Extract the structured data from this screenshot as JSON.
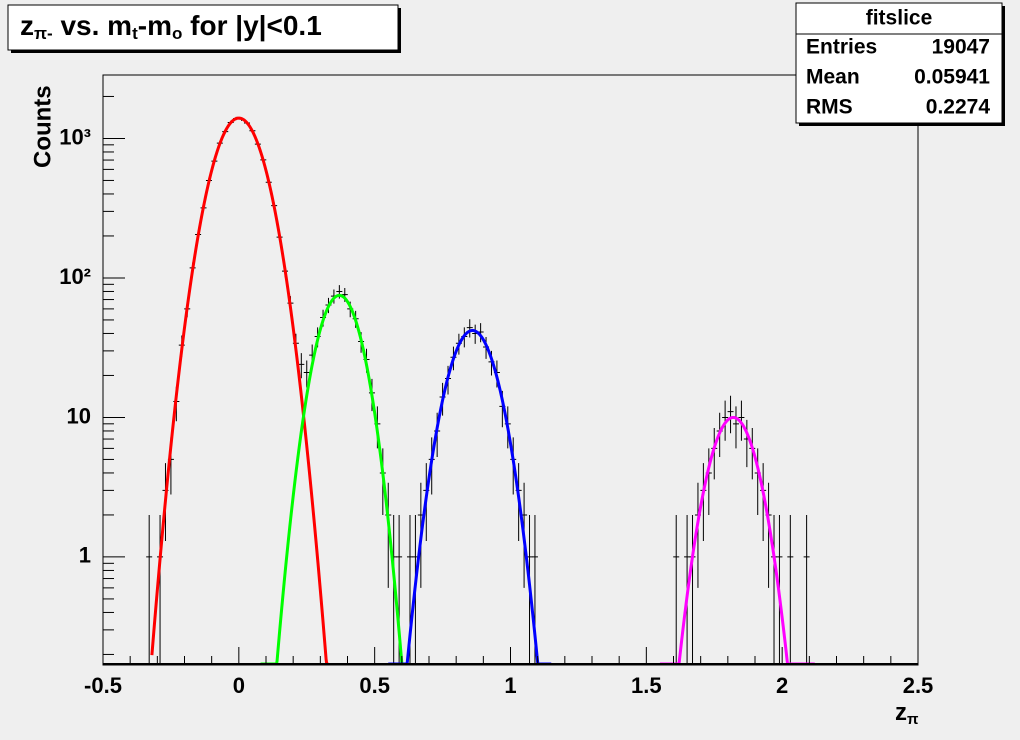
{
  "chart_data": {
    "type": "errorbar",
    "title": [
      "z",
      "π-",
      " vs. m",
      "t",
      "-m",
      "o",
      " for |y|<0.1"
    ],
    "xlabel": [
      "z",
      "π"
    ],
    "ylabel": "Counts",
    "color": "#000000",
    "x": [
      -0.33,
      -0.29,
      -0.27,
      -0.25,
      -0.23,
      -0.21,
      -0.19,
      -0.17,
      -0.15,
      -0.13,
      -0.11,
      -0.09,
      -0.07,
      -0.05,
      -0.03,
      -0.01,
      0.01,
      0.03,
      0.05,
      0.07,
      0.09,
      0.11,
      0.13,
      0.15,
      0.17,
      0.19,
      0.21,
      0.23,
      0.25,
      0.27,
      0.29,
      0.31,
      0.33,
      0.35,
      0.37,
      0.39,
      0.41,
      0.43,
      0.45,
      0.47,
      0.49,
      0.51,
      0.53,
      0.55,
      0.57,
      0.59,
      0.63,
      0.65,
      0.67,
      0.69,
      0.71,
      0.73,
      0.75,
      0.77,
      0.79,
      0.81,
      0.83,
      0.85,
      0.87,
      0.89,
      0.91,
      0.93,
      0.95,
      0.97,
      0.99,
      1.01,
      1.03,
      1.05,
      1.07,
      1.09,
      1.61,
      1.65,
      1.67,
      1.69,
      1.71,
      1.73,
      1.75,
      1.77,
      1.79,
      1.81,
      1.83,
      1.85,
      1.87,
      1.89,
      1.91,
      1.93,
      1.95,
      1.97,
      1.99,
      2.03,
      2.09
    ],
    "values": [
      1,
      1,
      3,
      5,
      13,
      33,
      60,
      118,
      205,
      318,
      500,
      688,
      925,
      1120,
      1302,
      1390,
      1375,
      1290,
      1135,
      910,
      702,
      485,
      330,
      196,
      112,
      66,
      34,
      24,
      21,
      28,
      38,
      52,
      64,
      74,
      80,
      76,
      60,
      51,
      35,
      26,
      15,
      9,
      4,
      2,
      1,
      1,
      1,
      1,
      2,
      3,
      5,
      8,
      14,
      19,
      27,
      34,
      38,
      44,
      40,
      41,
      32,
      25,
      21,
      12,
      9,
      5,
      3,
      2,
      1,
      1,
      1,
      1,
      1,
      2,
      3,
      4,
      6,
      8,
      10,
      11,
      9,
      10,
      7,
      6,
      4,
      3,
      2,
      1,
      1,
      1,
      1
    ],
    "errors": [
      1,
      1,
      1.7,
      2.2,
      3.6,
      5.7,
      7.7,
      10.9,
      14.3,
      17.8,
      22.4,
      26.2,
      30.4,
      33.5,
      36.1,
      37.3,
      37.1,
      35.9,
      33.7,
      30.2,
      26.5,
      22,
      18.2,
      14,
      10.6,
      8.1,
      5.8,
      4.9,
      4.6,
      5.3,
      6.2,
      7.2,
      8,
      8.6,
      8.9,
      8.7,
      7.7,
      7.1,
      5.9,
      5.1,
      3.9,
      3,
      2,
      1.4,
      1,
      1,
      1,
      1,
      1.4,
      1.7,
      2.2,
      2.8,
      3.7,
      4.4,
      5.2,
      5.8,
      6.2,
      6.6,
      6.3,
      6.4,
      5.7,
      5,
      4.6,
      3.5,
      3,
      2.2,
      1.7,
      1.4,
      1,
      1,
      1,
      1,
      1,
      1.4,
      1.7,
      2,
      2.4,
      2.8,
      3.2,
      3.3,
      3,
      3.2,
      2.6,
      2.4,
      2,
      1.7,
      1.4,
      1,
      1,
      1,
      1
    ],
    "xlim": [
      -0.5,
      2.5
    ],
    "ylim": [
      0.168,
      2850
    ],
    "log_y": true,
    "xticks": [
      -0.5,
      0,
      0.5,
      1,
      1.5,
      2,
      2.5
    ],
    "xminorticks": [
      -0.4,
      -0.3,
      -0.2,
      -0.1,
      0.1,
      0.2,
      0.3,
      0.4,
      0.6,
      0.7,
      0.8,
      0.9,
      1.1,
      1.2,
      1.3,
      1.4,
      1.6,
      1.7,
      1.8,
      1.9,
      2.1,
      2.2,
      2.3,
      2.4
    ],
    "yticks": [
      1,
      10,
      {
        "value": 100,
        "label": "10²"
      },
      {
        "value": 1000,
        "label": "10³"
      }
    ],
    "yminorticks": [
      0.2,
      0.3,
      0.4,
      0.5,
      0.6,
      0.7,
      0.8,
      0.9,
      2,
      3,
      4,
      5,
      6,
      7,
      8,
      9,
      20,
      30,
      40,
      50,
      60,
      70,
      80,
      90,
      200,
      300,
      400,
      500,
      600,
      700,
      800,
      900,
      2000
    ],
    "fits": [
      {
        "color": "#ff0000",
        "constant": 1400,
        "mean": 0,
        "sigma": 0.076,
        "range": [
          -0.32,
          0.33
        ]
      },
      {
        "color": "#00ff00",
        "constant": 75,
        "mean": 0.37,
        "sigma": 0.066,
        "range": [
          0.08,
          0.6
        ]
      },
      {
        "color": "#0000ff",
        "constant": 42,
        "mean": 0.86,
        "sigma": 0.0725,
        "range": [
          0.55,
          1.15
        ]
      },
      {
        "color": "#ff00ff",
        "constant": 10,
        "mean": 1.82,
        "sigma": 0.07,
        "range": [
          1.55,
          2.12
        ]
      }
    ],
    "stats": {
      "title": "fitslice",
      "rows": [
        [
          "Entries",
          19047
        ],
        [
          "Mean",
          0.05941
        ],
        [
          "RMS",
          0.2274
        ]
      ]
    }
  }
}
